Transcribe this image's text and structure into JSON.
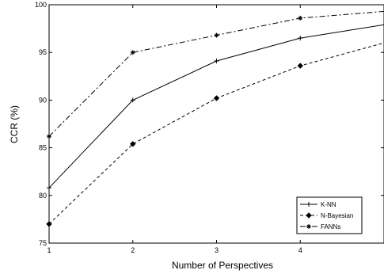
{
  "chart_data": {
    "type": "line",
    "title": "",
    "xlabel": "Number of Perspectives",
    "ylabel": "CCR (%)",
    "xlim": [
      1,
      5
    ],
    "ylim": [
      75,
      100
    ],
    "x_ticks": [
      1,
      2,
      3,
      4
    ],
    "y_ticks": [
      75,
      80,
      85,
      90,
      95,
      100
    ],
    "grid": false,
    "legend_position": "bottom-right",
    "x": [
      1,
      2,
      3,
      4,
      5
    ],
    "series": [
      {
        "name": "K-NN",
        "values": [
          80.8,
          90.0,
          94.1,
          96.5,
          97.9
        ],
        "line_style": "solid",
        "marker": "plus",
        "color": "#000000"
      },
      {
        "name": "N-Bayesian",
        "values": [
          77.0,
          85.4,
          90.2,
          93.6,
          96.0
        ],
        "line_style": "dashed",
        "marker": "diamond",
        "color": "#000000"
      },
      {
        "name": "FANNs",
        "values": [
          86.2,
          95.0,
          96.8,
          98.6,
          99.3
        ],
        "line_style": "dashdot",
        "marker": "star",
        "color": "#000000"
      }
    ]
  }
}
